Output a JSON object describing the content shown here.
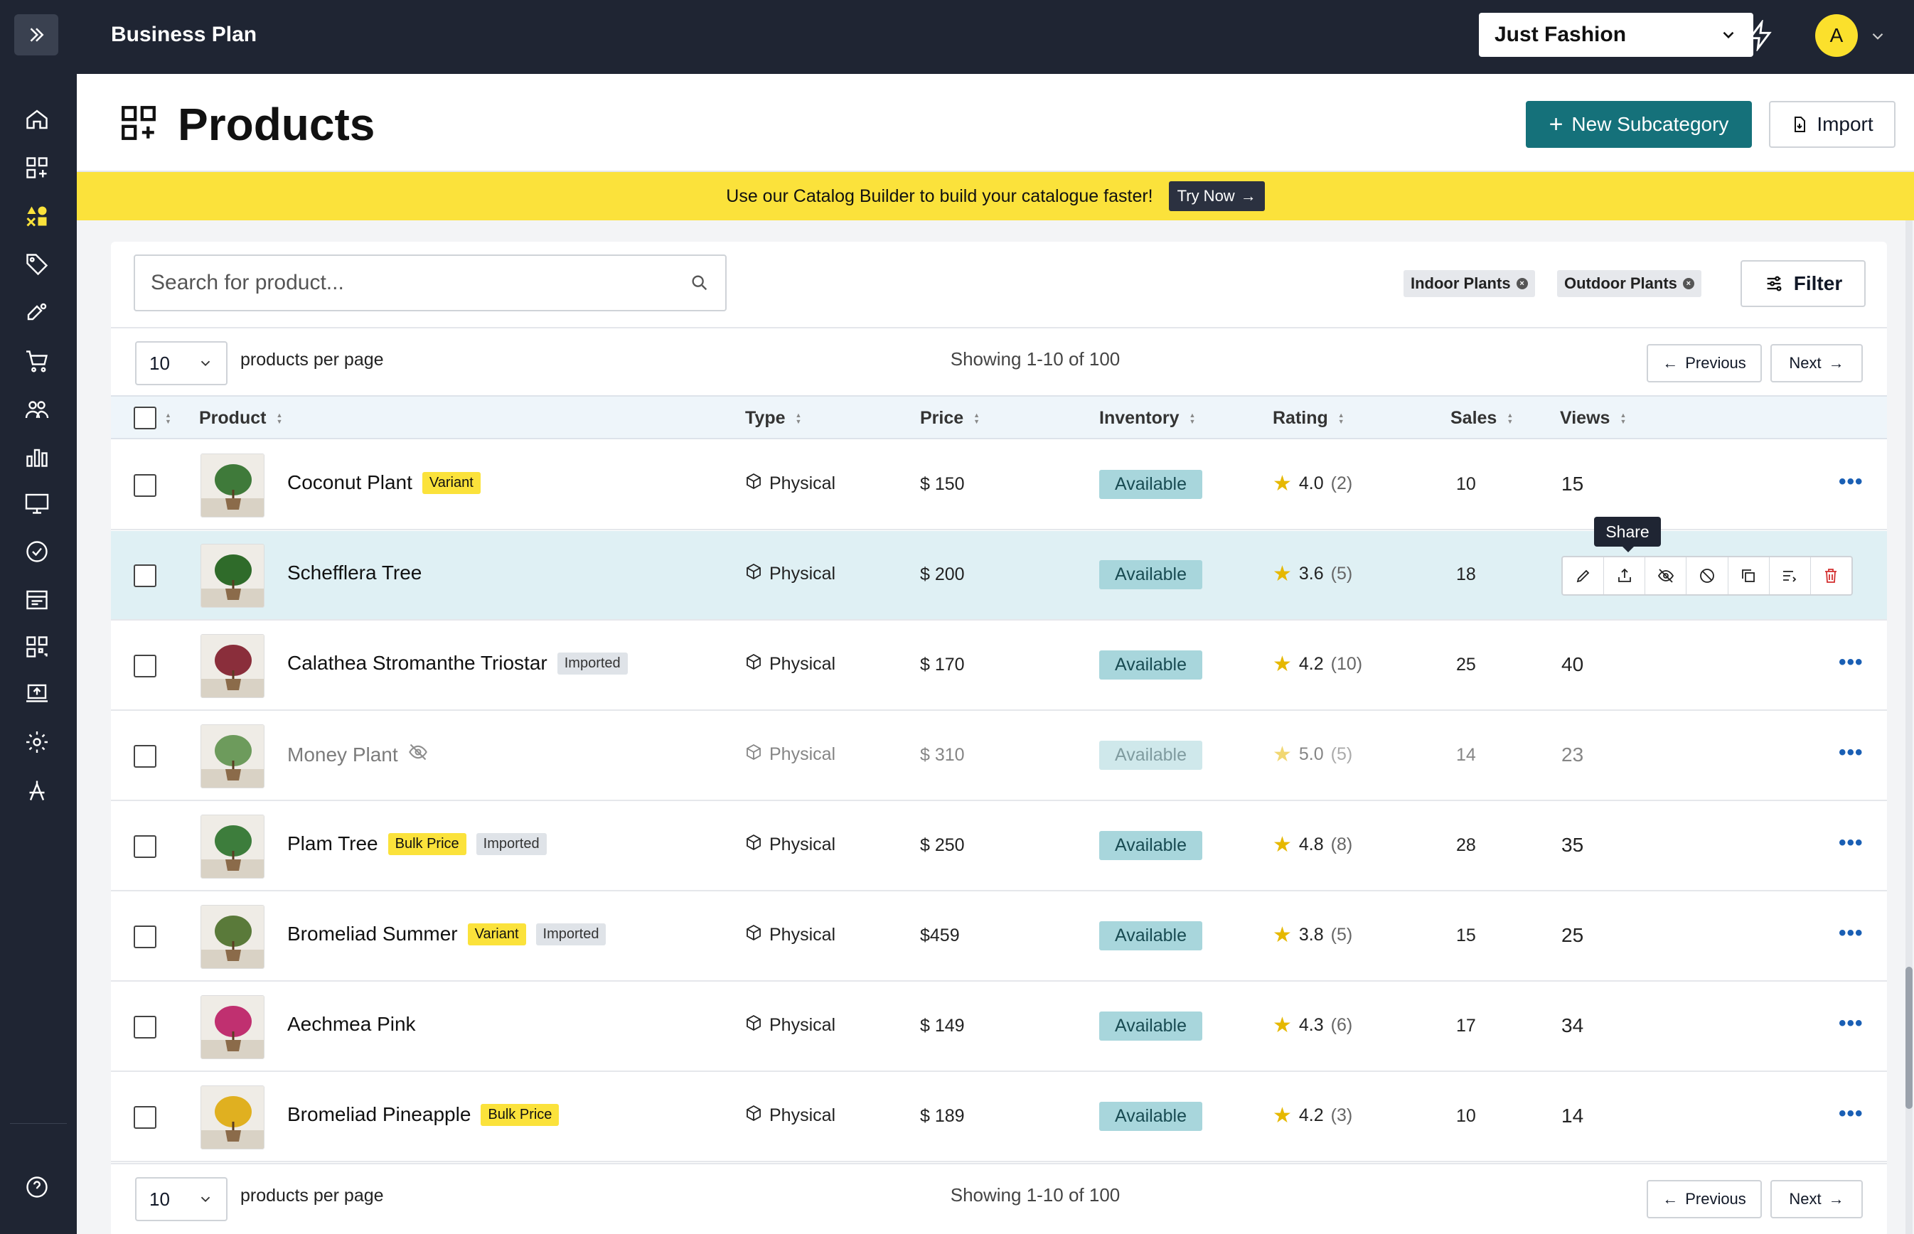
{
  "topbar": {
    "plan_title": "Business Plan",
    "store": "Just Fashion",
    "avatar_initial": "A"
  },
  "sidebar": {
    "items": [
      "home-icon",
      "grid-add-icon",
      "shapes-icon",
      "tag-icon",
      "promotion-icon",
      "cart-icon",
      "users-icon",
      "bar-chart-icon",
      "monitor-icon",
      "settings-badge-icon",
      "news-icon",
      "qr-icon",
      "laptop-upload-icon",
      "gear-icon",
      "compass-icon"
    ],
    "help": "help-icon"
  },
  "header": {
    "title": "Products",
    "new_subcategory": "New Subcategory",
    "import": "Import"
  },
  "banner": {
    "text": "Use our Catalog Builder to build your catalogue faster!",
    "cta": "Try Now"
  },
  "toolbar": {
    "search_placeholder": "Search for product...",
    "chips": [
      "Indoor Plants",
      "Outdoor Plants"
    ],
    "filter": "Filter"
  },
  "pagination": {
    "per_page": "10",
    "per_page_label": "products per page",
    "showing": "Showing 1-10 of 100",
    "previous": "Previous",
    "next": "Next"
  },
  "table": {
    "headers": {
      "product": "Product",
      "type": "Type",
      "price": "Price",
      "inventory": "Inventory",
      "rating": "Rating",
      "sales": "Sales",
      "views": "Views"
    },
    "rows": [
      {
        "name": "Coconut Plant",
        "tags": [
          "Variant"
        ],
        "type": "Physical",
        "price": "$ 150",
        "inventory": "Available",
        "rating": "4.0",
        "rating_count": "(2)",
        "sales": "10",
        "views": "15"
      },
      {
        "name": "Schefflera Tree",
        "tags": [],
        "type": "Physical",
        "price": "$ 200",
        "inventory": "Available",
        "rating": "3.6",
        "rating_count": "(5)",
        "sales": "18",
        "views": ""
      },
      {
        "name": "Calathea Stromanthe Triostar",
        "tags": [
          "Imported"
        ],
        "type": "Physical",
        "price": "$ 170",
        "inventory": "Available",
        "rating": "4.2",
        "rating_count": "(10)",
        "sales": "25",
        "views": "40"
      },
      {
        "name": "Money Plant",
        "tags": [],
        "type": "Physical",
        "price": "$ 310",
        "inventory": "Available",
        "rating": "5.0",
        "rating_count": "(5)",
        "sales": "14",
        "views": "23"
      },
      {
        "name": "Plam Tree",
        "tags": [
          "Bulk Price",
          "Imported"
        ],
        "type": "Physical",
        "price": "$ 250",
        "inventory": "Available",
        "rating": "4.8",
        "rating_count": "(8)",
        "sales": "28",
        "views": "35"
      },
      {
        "name": "Bromeliad Summer",
        "tags": [
          "Variant",
          "Imported"
        ],
        "type": "Physical",
        "price": "$459",
        "inventory": "Available",
        "rating": "3.8",
        "rating_count": "(5)",
        "sales": "15",
        "views": "25"
      },
      {
        "name": "Aechmea Pink",
        "tags": [],
        "type": "Physical",
        "price": "$ 149",
        "inventory": "Available",
        "rating": "4.3",
        "rating_count": "(6)",
        "sales": "17",
        "views": "34"
      },
      {
        "name": "Bromeliad Pineapple",
        "tags": [
          "Bulk Price"
        ],
        "type": "Physical",
        "price": "$ 189",
        "inventory": "Available",
        "rating": "4.2",
        "rating_count": "(3)",
        "sales": "10",
        "views": "14"
      }
    ],
    "tooltip": "Share",
    "colors": {
      "accent": "#15717a",
      "banner": "#fbe23b",
      "available": "#a8d6dc",
      "highlight_row": "#dff0f4"
    }
  }
}
